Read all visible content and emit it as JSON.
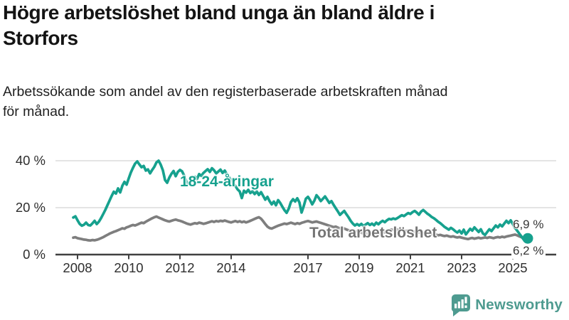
{
  "title": "Högre arbetslöshet bland unga än bland äldre i Storfors",
  "subtitle": "Arbetssökande som andel av den registerbaserade arbetskraften månad för månad.",
  "branding": {
    "name": "Newsworthy",
    "icon": "newsworthy-bar-chart-bubble-icon",
    "color": "#4e9b90"
  },
  "colors": {
    "accent_teal": "#16a18e",
    "line_gray": "#7e7e7e",
    "grid": "#dcdcdc",
    "axis": "#404040"
  },
  "chart_data": {
    "type": "line",
    "title": "Högre arbetslöshet bland unga än bland äldre i Storfors",
    "unit": "%",
    "grid": "horizontal",
    "legend": "inline-labels",
    "x_start": "2007-11",
    "x_end": "2025-08",
    "x_interval": "monthly",
    "x_ticks": [
      2008,
      2010,
      2012,
      2014,
      2017,
      2019,
      2021,
      2023,
      2025
    ],
    "y_ticks": [
      {
        "value": 0,
        "label": "0 %"
      },
      {
        "value": 20,
        "label": "20 %"
      },
      {
        "value": 40,
        "label": "40 %"
      }
    ],
    "ylim": [
      0,
      46
    ],
    "series": [
      {
        "name": "18-24-åringar",
        "color": "#16a18e",
        "end_label": "6,9 %",
        "last_value": 6.9,
        "values": [
          15.8,
          16.3,
          14.6,
          13.1,
          12.3,
          12.7,
          13.6,
          12.6,
          12.4,
          13.3,
          14.4,
          13.0,
          14.0,
          15.5,
          17.2,
          19.0,
          21.0,
          23.0,
          25.0,
          26.8,
          26.0,
          28.2,
          26.5,
          29.3,
          31.0,
          29.8,
          32.5,
          35.0,
          37.0,
          38.8,
          39.7,
          38.4,
          37.2,
          37.8,
          35.8,
          36.3,
          34.6,
          36.1,
          37.4,
          39.3,
          40.0,
          38.3,
          35.9,
          31.8,
          30.6,
          32.8,
          34.4,
          35.6,
          33.4,
          35.2,
          36.1,
          35.5,
          33.6,
          31.2,
          29.9,
          30.6,
          31.8,
          33.2,
          32.2,
          34.3,
          33.5,
          34.8,
          35.6,
          36.4,
          35.2,
          36.8,
          35.9,
          34.6,
          35.4,
          36.2,
          34.8,
          35.8,
          34.2,
          33.0,
          31.6,
          30.4,
          29.2,
          27.8,
          26.9,
          24.1,
          27.2,
          26.4,
          27.6,
          26.2,
          27.0,
          25.8,
          26.9,
          25.4,
          26.6,
          25.0,
          23.4,
          24.6,
          22.8,
          21.4,
          22.6,
          21.0,
          23.2,
          22.0,
          20.4,
          18.9,
          17.8,
          19.6,
          22.4,
          23.6,
          22.6,
          24.0,
          22.2,
          17.9,
          20.6,
          23.8,
          24.6,
          23.2,
          21.4,
          23.0,
          25.3,
          24.2,
          22.8,
          23.8,
          24.8,
          23.4,
          22.0,
          22.8,
          21.2,
          19.8,
          18.4,
          16.9,
          17.8,
          18.6,
          17.2,
          15.9,
          14.4,
          13.2,
          12.4,
          13.0,
          12.4,
          13.1,
          12.2,
          12.8,
          13.4,
          12.6,
          13.2,
          12.5,
          13.6,
          12.9,
          13.8,
          14.4,
          13.8,
          14.6,
          15.2,
          15.0,
          15.4,
          15.1,
          15.6,
          16.2,
          16.8,
          16.4,
          17.1,
          17.7,
          17.3,
          18.1,
          18.6,
          17.9,
          17.0,
          18.3,
          19.0,
          18.2,
          17.4,
          16.8,
          16.0,
          15.5,
          14.8,
          14.0,
          13.4,
          12.6,
          11.8,
          11.2,
          10.6,
          11.4,
          10.8,
          10.0,
          9.4,
          10.2,
          9.0,
          10.6,
          8.6,
          9.8,
          11.0,
          10.2,
          11.6,
          10.6,
          9.6,
          10.8,
          9.0,
          8.4,
          9.6,
          10.8,
          10.0,
          11.2,
          12.4,
          11.6,
          12.8,
          12.0,
          13.2,
          14.4,
          13.4,
          14.6,
          13.0,
          11.4,
          10.2,
          9.0,
          7.8,
          6.5,
          7.8,
          6.9
        ]
      },
      {
        "name": "Total arbetslöshet",
        "color": "#7e7e7e",
        "end_label": "6,2 %",
        "last_value": 6.2,
        "values": [
          7.2,
          7.4,
          7.0,
          6.8,
          6.6,
          6.4,
          6.3,
          6.1,
          6.0,
          6.2,
          6.1,
          6.3,
          6.6,
          7.0,
          7.4,
          7.9,
          8.4,
          8.9,
          9.3,
          9.7,
          10.0,
          10.4,
          10.8,
          11.2,
          11.0,
          11.6,
          11.9,
          12.3,
          12.6,
          12.4,
          12.8,
          13.2,
          13.6,
          13.4,
          14.0,
          14.5,
          15.0,
          15.5,
          15.9,
          16.2,
          15.8,
          15.4,
          15.0,
          14.6,
          14.3,
          14.1,
          14.4,
          14.7,
          14.9,
          14.6,
          14.4,
          14.1,
          13.7,
          13.3,
          13.0,
          12.8,
          13.1,
          13.4,
          13.2,
          13.6,
          13.4,
          13.1,
          13.3,
          13.6,
          13.9,
          14.2,
          13.9,
          14.3,
          14.1,
          14.4,
          14.2,
          14.5,
          14.2,
          13.9,
          13.7,
          14.0,
          14.3,
          13.9,
          14.2,
          13.8,
          14.1,
          13.7,
          14.0,
          14.4,
          14.8,
          15.2,
          15.6,
          15.9,
          15.3,
          14.2,
          13.0,
          11.9,
          11.3,
          11.1,
          11.5,
          11.9,
          12.3,
          12.6,
          12.9,
          13.2,
          13.0,
          13.3,
          13.6,
          13.3,
          13.0,
          13.4,
          13.1,
          13.5,
          13.8,
          14.1,
          14.3,
          14.0,
          13.7,
          13.9,
          14.1,
          13.8,
          13.5,
          13.2,
          12.9,
          12.6,
          12.3,
          12.0,
          11.7,
          11.9,
          11.5,
          11.2,
          10.9,
          11.1,
          10.7,
          10.4,
          10.1,
          9.8,
          9.6,
          9.9,
          9.6,
          9.3,
          9.0,
          9.2,
          8.9,
          8.7,
          8.9,
          9.1,
          8.8,
          9.0,
          9.3,
          9.6,
          9.4,
          9.8,
          10.3,
          10.7,
          10.5,
          10.8,
          10.6,
          10.3,
          10.5,
          10.2,
          10.0,
          10.3,
          10.0,
          9.7,
          9.9,
          9.6,
          9.3,
          9.5,
          9.2,
          8.9,
          9.1,
          8.8,
          8.6,
          8.8,
          8.5,
          8.2,
          8.4,
          8.1,
          7.9,
          8.1,
          7.8,
          7.6,
          7.8,
          7.5,
          7.3,
          7.5,
          7.2,
          7.0,
          6.8,
          6.6,
          6.9,
          7.1,
          6.8,
          7.0,
          7.2,
          6.9,
          7.1,
          7.3,
          7.1,
          7.4,
          7.2,
          7.0,
          7.3,
          7.5,
          7.3,
          7.6,
          7.4,
          7.7,
          7.9,
          8.1,
          8.3,
          8.5,
          8.2,
          7.8,
          7.4,
          7.0,
          6.6,
          6.2
        ]
      }
    ]
  }
}
